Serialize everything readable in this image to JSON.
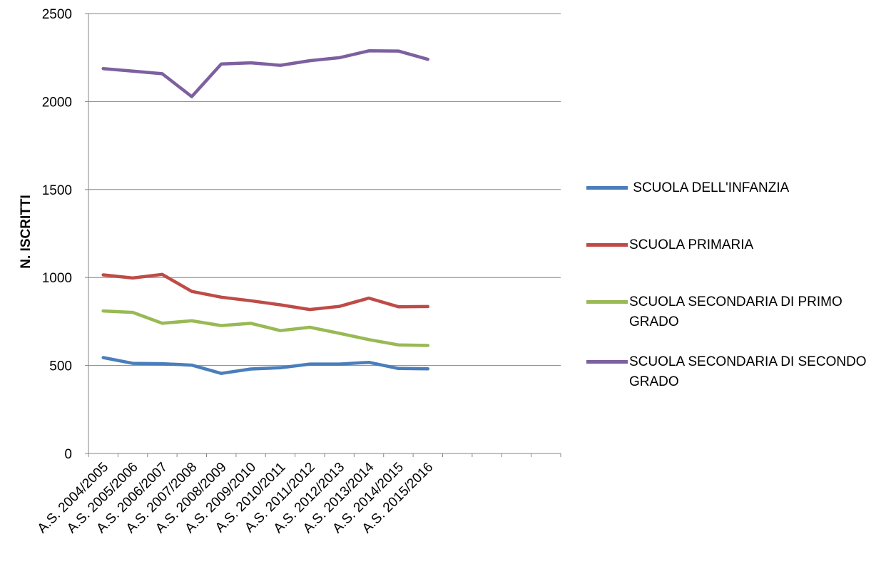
{
  "chart_data": {
    "type": "line",
    "title": "",
    "xlabel": "",
    "ylabel": "N. ISCRITTI",
    "ylim": [
      0,
      2500
    ],
    "yticks": [
      "0",
      "500",
      "1000",
      "1500",
      "2000",
      "2500"
    ],
    "grid": "horizontal",
    "legend_position": "right",
    "categories": [
      "A.S. 2004/2005",
      "A.S. 2005/2006",
      "A.S. 2006/2007",
      "A.S. 2007/2008",
      "A.S. 2008/2009",
      "A.S. 2009/2010",
      "A.S. 2010/2011",
      "A.S. 2011/2012",
      "A.S. 2012/2013",
      "A.S. 2013/2014",
      "A.S. 2014/2015",
      "A.S. 2015/2016"
    ],
    "empty_categories_after": 4,
    "series": [
      {
        "name": " SCUOLA DELL'INFANZIA",
        "color": "#4a7ebb",
        "values": [
          545,
          512,
          510,
          502,
          455,
          480,
          487,
          508,
          508,
          518,
          483,
          481
        ]
      },
      {
        "name": "SCUOLA PRIMARIA",
        "color": "#be4b48",
        "values": [
          1015,
          997,
          1018,
          921,
          888,
          868,
          845,
          818,
          836,
          883,
          834,
          835
        ]
      },
      {
        "name": "SCUOLA SECONDARIA DI PRIMO GRADO",
        "color": "#98b954",
        "values": [
          810,
          802,
          740,
          754,
          727,
          740,
          698,
          717,
          683,
          647,
          617,
          614
        ]
      },
      {
        "name": "SCUOLA SECONDARIA DI SECONDO GRADO",
        "color": "#7d60a0",
        "values": [
          2187,
          2173,
          2158,
          2028,
          2213,
          2220,
          2206,
          2232,
          2249,
          2288,
          2287,
          2240
        ]
      }
    ]
  }
}
